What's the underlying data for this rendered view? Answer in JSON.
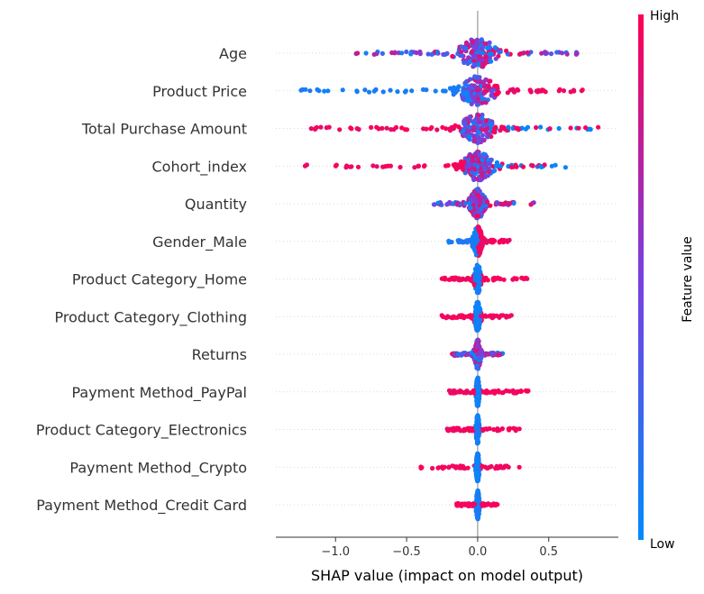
{
  "chart_data": {
    "type": "scatter",
    "subtype": "shap-beeswarm",
    "xlabel": "SHAP value (impact on model output)",
    "xlim": [
      -1.42,
      0.99
    ],
    "x_ticks": [
      -1.0,
      -0.5,
      0.0,
      0.5
    ],
    "x_tick_labels": [
      "−1.0",
      "−0.5",
      "0.0",
      "0.5"
    ],
    "colorbar": {
      "label": "Feature value",
      "high_label": "High",
      "low_label": "Low",
      "high_color": "#ff0052",
      "low_color": "#008bfb"
    },
    "features": [
      {
        "name": "Age",
        "min": -0.87,
        "max": 0.7,
        "core": 0.13,
        "tail_color": "mixed"
      },
      {
        "name": "Product Price",
        "min": -1.32,
        "max": 0.74,
        "core": 0.12,
        "tail_color": "low-left"
      },
      {
        "name": "Total Purchase Amount",
        "min": -1.2,
        "max": 0.86,
        "core": 0.11,
        "tail_color": "high-left"
      },
      {
        "name": "Cohort_index",
        "min": -1.27,
        "max": 0.62,
        "core": 0.1,
        "tail_color": "high-left"
      },
      {
        "name": "Quantity",
        "min": -0.31,
        "max": 0.41,
        "core": 0.05,
        "tail_color": "mixed"
      },
      {
        "name": "Gender_Male",
        "min": -0.23,
        "max": 0.24,
        "core": 0.03,
        "tail_color": "split-low-left"
      },
      {
        "name": "Product Category_Home",
        "min": -0.26,
        "max": 0.35,
        "core": 0.02,
        "tail_color": "split-low-center"
      },
      {
        "name": "Product Category_Clothing",
        "min": -0.26,
        "max": 0.26,
        "core": 0.02,
        "tail_color": "split-low-center"
      },
      {
        "name": "Returns",
        "min": -0.19,
        "max": 0.18,
        "core": 0.02,
        "tail_color": "mixed"
      },
      {
        "name": "Payment Method_PayPal",
        "min": -0.2,
        "max": 0.36,
        "core": 0.01,
        "tail_color": "split-low-center"
      },
      {
        "name": "Product Category_Electronics",
        "min": -0.22,
        "max": 0.3,
        "core": 0.01,
        "tail_color": "split-low-center"
      },
      {
        "name": "Payment Method_Crypto",
        "min": -0.41,
        "max": 0.31,
        "core": 0.01,
        "tail_color": "split-low-center"
      },
      {
        "name": "Payment Method_Credit Card",
        "min": -0.15,
        "max": 0.14,
        "core": 0.01,
        "tail_color": "split-low-center"
      }
    ]
  }
}
